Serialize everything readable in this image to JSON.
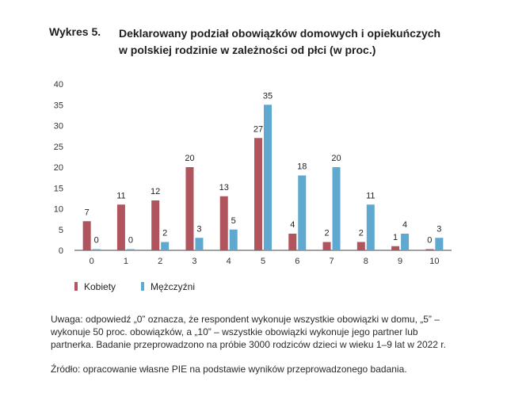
{
  "header": {
    "label": "Wykres 5.",
    "title_line1": "Deklarowany podział obowiązków domowych i opiekuńczych",
    "title_line2": "w polskiej rodzinie w zależności od płci (w proc.)"
  },
  "notes": {
    "remark": "Uwaga: odpowiedź „0” oznacza, że respondent wykonuje wszystkie obowiązki w domu, „5” – wykonuje 50 proc. obowiązków, a „10” – wszystkie obowiązki wykonuje jego partner lub partnerka. Badanie przeprowadzono na próbie 3000 rodziców dzieci w wieku 1–9 lat w 2022 r.",
    "source": "Źródło: opracowanie własne PIE na podstawie wyników przeprowadzonego badania."
  },
  "chart_data": {
    "type": "bar",
    "categories": [
      "0",
      "1",
      "2",
      "3",
      "4",
      "5",
      "6",
      "7",
      "8",
      "9",
      "10"
    ],
    "series": [
      {
        "name": "Kobiety",
        "color": "#b0545e",
        "values": [
          7,
          11,
          12,
          20,
          13,
          27,
          4,
          2,
          2,
          1,
          0
        ]
      },
      {
        "name": "Mężczyźni",
        "color": "#5fa8cf",
        "values": [
          0,
          0,
          2,
          3,
          5,
          35,
          18,
          20,
          11,
          4,
          3
        ]
      }
    ],
    "ylim": [
      0,
      40
    ],
    "yticks": [
      "0",
      "5",
      "10",
      "15",
      "20",
      "25",
      "30",
      "35",
      "40"
    ],
    "grid": false,
    "legend_position": "bottom-left"
  }
}
